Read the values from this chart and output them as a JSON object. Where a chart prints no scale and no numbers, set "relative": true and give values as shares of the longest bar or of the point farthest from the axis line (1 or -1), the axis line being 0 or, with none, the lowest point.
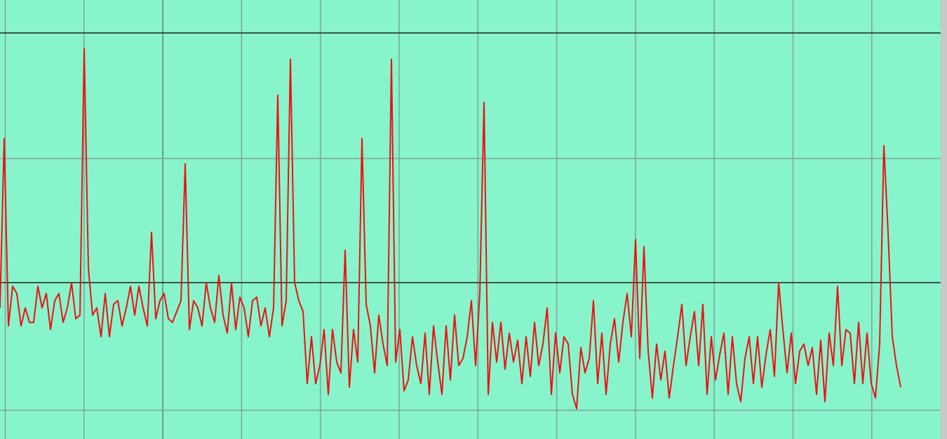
{
  "chart_data": {
    "type": "line",
    "relative": true,
    "grid": true,
    "ref_lines": [
      {
        "axis": "y",
        "value": 0.35,
        "color": "#222222"
      }
    ],
    "categories": [
      null,
      null,
      null,
      null,
      null,
      null,
      null,
      null,
      null,
      null,
      null,
      null,
      null,
      null,
      null,
      null,
      null,
      null,
      null,
      null,
      null,
      null,
      null,
      null,
      null,
      null,
      null,
      null,
      null,
      null,
      null,
      null,
      null,
      null,
      null,
      null,
      null,
      null,
      null,
      null,
      null,
      null,
      null,
      null,
      null,
      null,
      null,
      null,
      null,
      null,
      null,
      null,
      null,
      null,
      null,
      null,
      null,
      null,
      null,
      null,
      null,
      null,
      null,
      null,
      null,
      null,
      null,
      null,
      null,
      null,
      null,
      null,
      null,
      null,
      null,
      null,
      null,
      null,
      null,
      null,
      null,
      null,
      null,
      null,
      null,
      null,
      null,
      null,
      null,
      null,
      null,
      null,
      null,
      null,
      null,
      null,
      null,
      null,
      null,
      null,
      null,
      null,
      null,
      null,
      null,
      null,
      null,
      null,
      null,
      null,
      null,
      null,
      null,
      null,
      null,
      null,
      null,
      null,
      null,
      null,
      null,
      null,
      null,
      null,
      null,
      null,
      null,
      null,
      null,
      null,
      null,
      null,
      null,
      null,
      null,
      null,
      null,
      null,
      null,
      null,
      null,
      null,
      null,
      null,
      null,
      null,
      null,
      null,
      null,
      null,
      null,
      null,
      null,
      null,
      null,
      null,
      null,
      null,
      null,
      null,
      null,
      null,
      null,
      null,
      null,
      null,
      null,
      null,
      null,
      null,
      null,
      null,
      null,
      null,
      null,
      null,
      null,
      null,
      null,
      null,
      null,
      null,
      null,
      null,
      null,
      null,
      null,
      null,
      null,
      null,
      null,
      null,
      null,
      null,
      null,
      null,
      null,
      null,
      null,
      null,
      null,
      null,
      null,
      null,
      null,
      null,
      null,
      null,
      null,
      null,
      null,
      null,
      null,
      null,
      null
    ],
    "series": [
      {
        "color": "#ee1111",
        "values": [
          0.28,
          0.75,
          0.23,
          0.34,
          0.32,
          0.23,
          0.28,
          0.24,
          0.24,
          0.34,
          0.28,
          0.32,
          0.22,
          0.3,
          0.32,
          0.24,
          0.28,
          0.35,
          0.25,
          0.26,
          1,
          0.39,
          0.26,
          0.28,
          0.2,
          0.32,
          0.2,
          0.29,
          0.3,
          0.23,
          0.28,
          0.34,
          0.26,
          0.34,
          0.28,
          0.23,
          0.49,
          0.25,
          0.3,
          0.32,
          0.25,
          0.24,
          0.27,
          0.3,
          0.68,
          0.22,
          0.3,
          0.28,
          0.23,
          0.35,
          0.28,
          0.24,
          0.37,
          0.26,
          0.21,
          0.35,
          0.22,
          0.31,
          0.28,
          0.2,
          0.3,
          0.31,
          0.23,
          0.28,
          0.2,
          0.28,
          0.87,
          0.23,
          0.3,
          0.97,
          0.35,
          0.3,
          0.27,
          0.07,
          0.2,
          0.07,
          0.12,
          0.22,
          0.04,
          0.22,
          0.13,
          0.1,
          0.44,
          0.06,
          0.22,
          0.13,
          0.75,
          0.29,
          0.23,
          0.1,
          0.26,
          0.18,
          0.12,
          0.97,
          0.13,
          0.22,
          0.05,
          0.08,
          0.2,
          0.12,
          0.07,
          0.21,
          0.04,
          0.23,
          0.13,
          0.04,
          0.23,
          0.08,
          0.26,
          0.12,
          0.14,
          0.2,
          0.3,
          0.12,
          0.32,
          0.85,
          0.04,
          0.24,
          0.13,
          0.24,
          0.11,
          0.21,
          0.13,
          0.19,
          0.07,
          0.2,
          0.09,
          0.24,
          0.12,
          0.18,
          0.28,
          0.04,
          0.21,
          0.1,
          0.2,
          0.18,
          0.04,
          0,
          0.17,
          0.1,
          0.14,
          0.3,
          0.07,
          0.21,
          0.04,
          0.18,
          0.25,
          0.13,
          0.24,
          0.32,
          0.2,
          0.47,
          0.14,
          0.45,
          0.16,
          0.03,
          0.18,
          0.08,
          0.16,
          0.03,
          0.12,
          0.2,
          0.29,
          0.12,
          0.2,
          0.27,
          0.12,
          0.29,
          0.04,
          0.2,
          0.08,
          0.15,
          0.21,
          0.04,
          0.2,
          0.07,
          0.02,
          0.14,
          0.2,
          0.07,
          0.2,
          0.06,
          0.15,
          0.22,
          0.09,
          0.35,
          0.22,
          0.1,
          0.21,
          0.07,
          0.16,
          0.18,
          0.12,
          0.17,
          0.04,
          0.19,
          0.02,
          0.21,
          0.12,
          0.34,
          0.12,
          0.22,
          0.21,
          0.07,
          0.24,
          0.07,
          0.21,
          0.07,
          0.03,
          0.18,
          0.73,
          0.49,
          0.2,
          0.12,
          0.06
        ]
      }
    ]
  }
}
